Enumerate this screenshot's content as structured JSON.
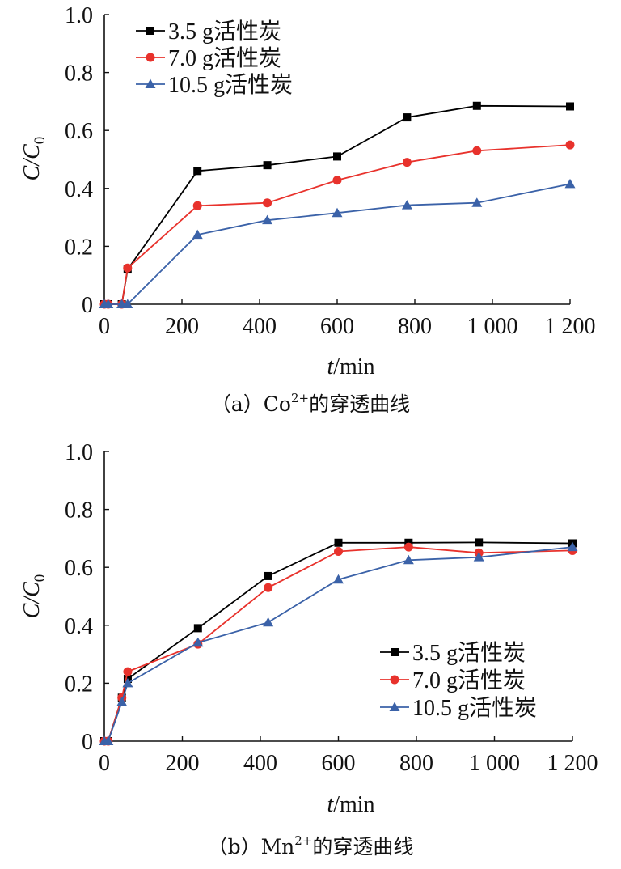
{
  "legend_labels": [
    "3.5 g活性炭",
    "7.0 g活性炭",
    "10.5 g活性炭"
  ],
  "colors": {
    "series1": "#000000",
    "series2": "#e8322c",
    "series3": "#3b62a8"
  },
  "markers": [
    "square",
    "circle",
    "triangle"
  ],
  "chart_data": [
    {
      "type": "line",
      "caption_prefix": "（a）",
      "caption_ion": "Co",
      "caption_sup": "2+",
      "caption_suffix": "的穿透曲线",
      "xlabel_italic": "t",
      "xlabel_rest": "/min",
      "ylabel_main": "C/C",
      "ylabel_sub": "0",
      "xlim": [
        0,
        1200
      ],
      "ylim": [
        0,
        1.0
      ],
      "x_ticks": [
        "0",
        "200",
        "400",
        "600",
        "800",
        "1 000",
        "1 200"
      ],
      "y_ticks": [
        "0",
        "0.2",
        "0.4",
        "0.6",
        "0.8",
        "1.0"
      ],
      "legend_position": "top-left",
      "series": [
        {
          "name": "3.5 g活性炭",
          "x": [
            0,
            10,
            45,
            60,
            240,
            420,
            600,
            780,
            960,
            1200
          ],
          "y": [
            0,
            0,
            0,
            0.12,
            0.46,
            0.48,
            0.51,
            0.645,
            0.685,
            0.683
          ]
        },
        {
          "name": "7.0 g活性炭",
          "x": [
            0,
            10,
            45,
            60,
            240,
            420,
            600,
            780,
            960,
            1200
          ],
          "y": [
            0,
            0,
            0,
            0.125,
            0.34,
            0.35,
            0.428,
            0.49,
            0.53,
            0.55
          ]
        },
        {
          "name": "10.5 g活性炭",
          "x": [
            0,
            10,
            45,
            60,
            240,
            420,
            600,
            780,
            960,
            1200
          ],
          "y": [
            0,
            0,
            0,
            0,
            0.24,
            0.29,
            0.315,
            0.342,
            0.35,
            0.415
          ]
        }
      ]
    },
    {
      "type": "line",
      "caption_prefix": "（b）",
      "caption_ion": "Mn",
      "caption_sup": "2+",
      "caption_suffix": "的穿透曲线",
      "xlabel_italic": "t",
      "xlabel_rest": "/min",
      "ylabel_main": "C/C",
      "ylabel_sub": "0",
      "xlim": [
        0,
        1200
      ],
      "ylim": [
        0,
        1.0
      ],
      "x_ticks": [
        "0",
        "200",
        "400",
        "600",
        "800",
        "1 000",
        "1 200"
      ],
      "y_ticks": [
        "0",
        "0.2",
        "0.4",
        "0.6",
        "0.8",
        "1.0"
      ],
      "legend_position": "bottom-right",
      "series": [
        {
          "name": "3.5 g活性炭",
          "x": [
            0,
            10,
            45,
            60,
            240,
            420,
            600,
            780,
            960,
            1200
          ],
          "y": [
            0,
            0,
            0.15,
            0.215,
            0.39,
            0.57,
            0.685,
            0.685,
            0.686,
            0.683
          ]
        },
        {
          "name": "7.0 g活性炭",
          "x": [
            0,
            10,
            45,
            60,
            240,
            420,
            600,
            780,
            960,
            1200
          ],
          "y": [
            0,
            0,
            0.15,
            0.24,
            0.335,
            0.53,
            0.655,
            0.67,
            0.65,
            0.658
          ]
        },
        {
          "name": "10.5 g活性炭",
          "x": [
            0,
            10,
            45,
            60,
            240,
            420,
            600,
            780,
            960,
            1200
          ],
          "y": [
            0,
            0,
            0.135,
            0.2,
            0.34,
            0.41,
            0.558,
            0.625,
            0.635,
            0.67
          ]
        }
      ]
    }
  ]
}
